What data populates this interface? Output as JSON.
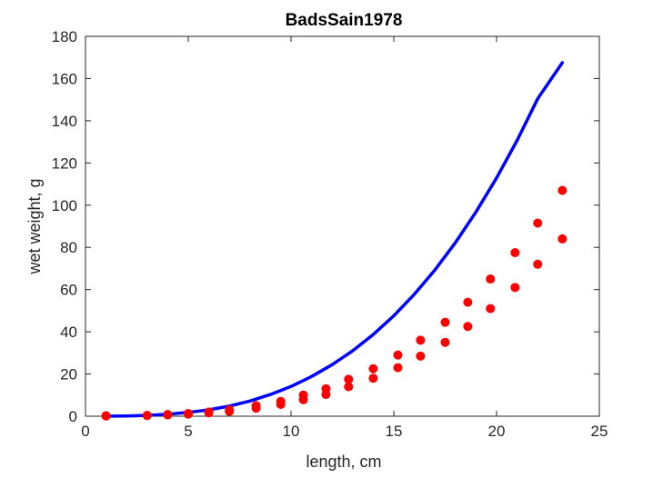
{
  "chart_data": {
    "type": "scatter",
    "title": "BadsSain1978",
    "xlabel": "length, cm",
    "ylabel": "wet weight, g",
    "xlim": [
      0,
      25
    ],
    "ylim": [
      0,
      180
    ],
    "xticks": [
      0,
      5,
      10,
      15,
      20,
      25
    ],
    "yticks": [
      0,
      20,
      40,
      60,
      80,
      100,
      120,
      140,
      160,
      180
    ],
    "grid": false,
    "series": [
      {
        "kind": "points",
        "color": "#ff0000",
        "points": [
          [
            1.0,
            0.2
          ],
          [
            1.0,
            0.1
          ],
          [
            3.0,
            0.4
          ],
          [
            3.0,
            0.3
          ],
          [
            4.0,
            0.8
          ],
          [
            4.0,
            0.6
          ],
          [
            5.0,
            1.3
          ],
          [
            5.0,
            1.0
          ],
          [
            6.0,
            2.0
          ],
          [
            6.0,
            1.6
          ],
          [
            7.0,
            3.0
          ],
          [
            7.0,
            2.3
          ],
          [
            8.3,
            5.0
          ],
          [
            8.3,
            3.8
          ],
          [
            9.5,
            7.0
          ],
          [
            9.5,
            5.6
          ],
          [
            10.6,
            10.0
          ],
          [
            10.6,
            7.8
          ],
          [
            11.7,
            13.0
          ],
          [
            11.7,
            10.3
          ],
          [
            12.8,
            17.5
          ],
          [
            12.8,
            14.0
          ],
          [
            14.0,
            22.5
          ],
          [
            14.0,
            18.0
          ],
          [
            15.2,
            29.0
          ],
          [
            15.2,
            23.0
          ],
          [
            16.3,
            36.0
          ],
          [
            16.3,
            28.5
          ],
          [
            17.5,
            44.5
          ],
          [
            17.5,
            35.0
          ],
          [
            18.6,
            54.0
          ],
          [
            18.6,
            42.5
          ],
          [
            19.7,
            65.0
          ],
          [
            19.7,
            51.0
          ],
          [
            20.9,
            77.5
          ],
          [
            20.9,
            61.0
          ],
          [
            22.0,
            91.5
          ],
          [
            22.0,
            72.0
          ],
          [
            23.2,
            107.0
          ],
          [
            23.2,
            84.0
          ]
        ]
      },
      {
        "kind": "line",
        "color": "#0000ff",
        "x": [
          1,
          2,
          3,
          4,
          5,
          6,
          7,
          8,
          9,
          10,
          11,
          12,
          13,
          14,
          15,
          16,
          17,
          18,
          19,
          20,
          21,
          22,
          23.2
        ],
        "y": [
          0.01,
          0.11,
          0.37,
          0.9,
          1.8,
          3.0,
          4.8,
          7.2,
          10.3,
          14.1,
          18.8,
          24.4,
          31.0,
          38.7,
          47.6,
          57.8,
          69.3,
          82.3,
          96.8,
          112.9,
          130.7,
          150.4,
          167.5
        ]
      }
    ]
  }
}
